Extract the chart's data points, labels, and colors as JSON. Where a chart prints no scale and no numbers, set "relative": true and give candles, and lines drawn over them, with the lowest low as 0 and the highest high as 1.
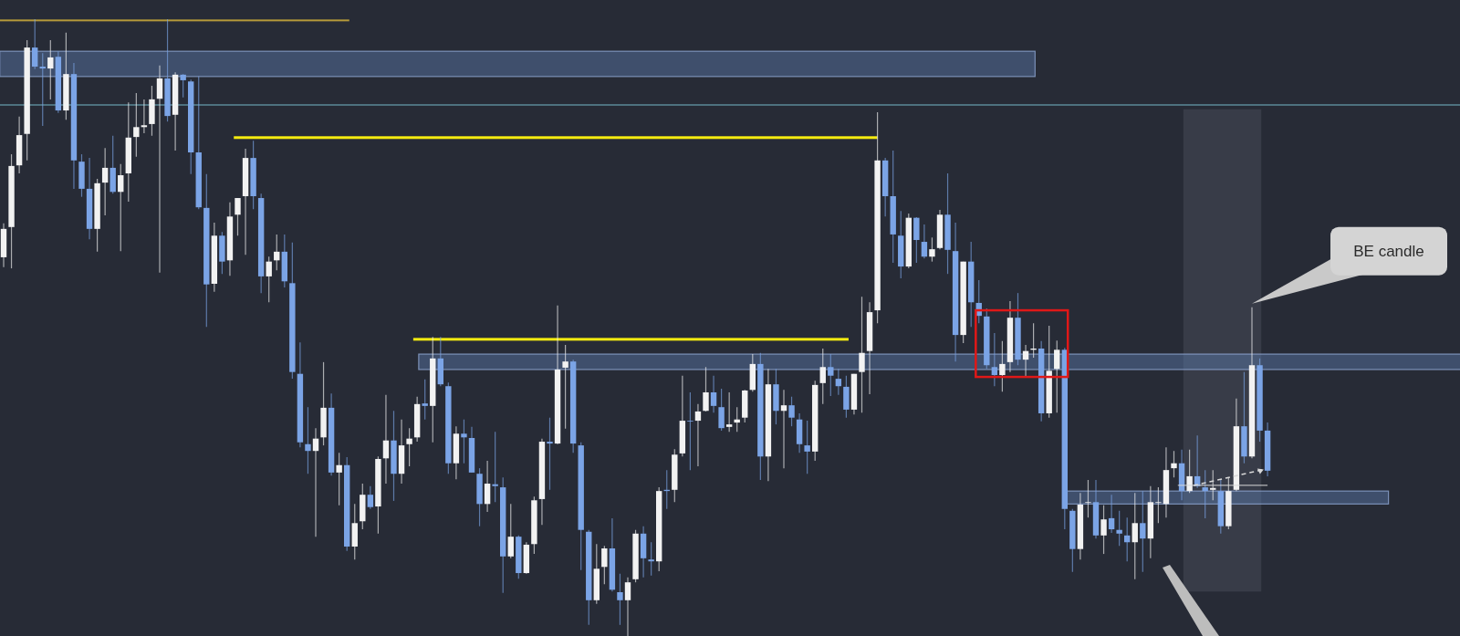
{
  "chart_data": {
    "type": "candlestick",
    "relative": true,
    "categories": [
      null,
      null,
      null,
      null,
      null,
      null,
      null,
      null,
      null,
      null,
      null,
      null,
      null,
      null,
      null,
      null,
      null,
      null,
      null,
      null,
      null,
      null,
      null,
      null,
      null,
      null,
      null,
      null,
      null,
      null,
      null,
      null,
      null,
      null,
      null,
      null,
      null,
      null,
      null,
      null,
      null,
      null,
      null,
      null,
      null,
      null,
      null,
      null,
      null,
      null,
      null,
      null,
      null,
      null,
      null,
      null,
      null,
      null,
      null,
      null,
      null,
      null,
      null,
      null,
      null,
      null,
      null,
      null,
      null,
      null,
      null,
      null,
      null,
      null,
      null,
      null,
      null,
      null,
      null,
      null,
      null,
      null,
      null,
      null,
      null,
      null,
      null,
      null,
      null,
      null,
      null,
      null,
      null,
      null,
      null,
      null,
      null,
      null,
      null,
      null,
      null,
      null,
      null,
      null,
      null,
      null,
      null,
      null,
      null,
      null,
      null,
      null,
      null,
      null,
      null,
      null,
      null,
      null,
      null,
      null,
      null,
      null,
      null,
      null,
      null,
      null,
      null,
      null,
      null,
      null,
      null,
      null,
      null,
      null,
      null,
      null,
      null,
      null,
      null,
      null,
      null,
      null,
      null,
      null,
      null,
      null,
      null,
      null,
      null,
      null,
      null,
      null,
      null,
      null,
      null,
      null,
      null,
      null,
      null,
      null,
      null,
      null,
      null
    ],
    "colors": [
      "#f2f2f2",
      "#f2f2f2",
      "#f2f2f2",
      "#f2f2f2",
      "#7ba4e6",
      "#7ba4e6",
      "#f2f2f2",
      "#7ba4e6",
      "#f2f2f2",
      "#7ba4e6",
      "#7ba4e6",
      "#7ba4e6",
      "#f2f2f2",
      "#f2f2f2",
      "#7ba4e6",
      "#f2f2f2",
      "#f2f2f2",
      "#f2f2f2",
      "#f2f2f2",
      "#f2f2f2",
      "#f2f2f2",
      "#7ba4e6",
      "#f2f2f2",
      "#7ba4e6",
      "#7ba4e6",
      "#7ba4e6",
      "#7ba4e6",
      "#f2f2f2",
      "#7ba4e6",
      "#f2f2f2",
      "#f2f2f2",
      "#f2f2f2",
      "#7ba4e6",
      "#7ba4e6",
      "#f2f2f2",
      "#f2f2f2",
      "#7ba4e6",
      "#7ba4e6",
      "#7ba4e6",
      "#7ba4e6",
      "#f2f2f2",
      "#f2f2f2",
      "#7ba4e6",
      "#f2f2f2",
      "#7ba4e6",
      "#f2f2f2",
      "#f2f2f2",
      "#7ba4e6",
      "#f2f2f2",
      "#f2f2f2",
      "#7ba4e6",
      "#f2f2f2",
      "#f2f2f2",
      "#f2f2f2",
      "#7ba4e6",
      "#f2f2f2",
      "#7ba4e6",
      "#7ba4e6",
      "#f2f2f2",
      "#7ba4e6",
      "#7ba4e6",
      "#7ba4e6",
      "#f2f2f2",
      "#7ba4e6",
      "#7ba4e6",
      "#f2f2f2",
      "#7ba4e6",
      "#f2f2f2",
      "#f2f2f2",
      "#f2f2f2",
      "#7ba4e6",
      "#f2f2f2",
      "#f2f2f2",
      "#7ba4e6",
      "#7ba4e6",
      "#7ba4e6",
      "#f2f2f2",
      "#f2f2f2",
      "#7ba4e6",
      "#7ba4e6",
      "#f2f2f2",
      "#f2f2f2",
      "#7ba4e6",
      "#7ba4e6",
      "#f2f2f2",
      "#7ba4e6",
      "#f2f2f2",
      "#f2f2f2",
      "#7ba4e6",
      "#f2f2f2",
      "#f2f2f2",
      "#7ba4e6",
      "#7ba4e6",
      "#f2f2f2",
      "#f2f2f2",
      "#f2f2f2",
      "#f2f2f2",
      "#7ba4e6",
      "#f2f2f2",
      "#7ba4e6",
      "#f2f2f2",
      "#7ba4e6",
      "#7ba4e6",
      "#7ba4e6",
      "#f2f2f2",
      "#f2f2f2",
      "#7ba4e6",
      "#7ba4e6",
      "#7ba4e6",
      "#f2f2f2",
      "#f2f2f2",
      "#f2f2f2",
      "#f2f2f2",
      "#7ba4e6",
      "#7ba4e6",
      "#7ba4e6",
      "#f2f2f2",
      "#7ba4e6",
      "#7ba4e6",
      "#f2f2f2",
      "#f2f2f2",
      "#7ba4e6",
      "#7ba4e6",
      "#f2f2f2",
      "#7ba4e6",
      "#7ba4e6",
      "#7ba4e6",
      "#7ba4e6",
      "#f2f2f2",
      "#f2f2f2",
      "#7ba4e6",
      "#f2f2f2",
      "#f2f2f2",
      "#7ba4e6",
      "#f2f2f2",
      "#f2f2f2",
      "#7ba4e6",
      "#7ba4e6",
      "#f2f2f2",
      "#f2f2f2",
      "#7ba4e6",
      "#f2f2f2",
      "#7ba4e6",
      "#7ba4e6",
      "#7ba4e6",
      "#f2f2f2",
      "#7ba4e6",
      "#f2f2f2",
      "#f2f2f2",
      "#f2f2f2",
      "#f2f2f2",
      "#7ba4e6",
      "#f2f2f2",
      "#7ba4e6",
      "#7ba4e6",
      "#f2f2f2",
      "#7ba4e6",
      "#f2f2f2",
      "#f2f2f2",
      "#7ba4e6",
      "#f2f2f2",
      "#7ba4e6",
      "#7ba4e6"
    ],
    "ohlc": [
      [
        0.614,
        0.669,
        0.598,
        0.66
      ],
      [
        0.663,
        0.781,
        0.596,
        0.762
      ],
      [
        0.763,
        0.842,
        0.75,
        0.812
      ],
      [
        0.814,
        0.966,
        0.771,
        0.954
      ],
      [
        0.954,
        1,
        0.919,
        0.923
      ],
      [
        0.923,
        0.945,
        0.827,
        0.92
      ],
      [
        0.92,
        0.966,
        0.87,
        0.938
      ],
      [
        0.939,
        0.948,
        0.848,
        0.852
      ],
      [
        0.852,
        0.978,
        0.837,
        0.911
      ],
      [
        0.911,
        0.929,
        0.725,
        0.771
      ],
      [
        0.769,
        0.781,
        0.712,
        0.725
      ],
      [
        0.725,
        0.775,
        0.643,
        0.66
      ],
      [
        0.66,
        0.741,
        0.623,
        0.734
      ],
      [
        0.735,
        0.791,
        0.682,
        0.759
      ],
      [
        0.759,
        0.811,
        0.717,
        0.72
      ],
      [
        0.72,
        0.765,
        0.624,
        0.747
      ],
      [
        0.75,
        0.865,
        0.704,
        0.808
      ],
      [
        0.809,
        0.88,
        0.777,
        0.825
      ],
      [
        0.825,
        0.87,
        0.815,
        0.828
      ],
      [
        0.83,
        0.892,
        0.811,
        0.87
      ],
      [
        0.871,
        0.925,
        0.589,
        0.904
      ],
      [
        0.904,
        1,
        0.834,
        0.843
      ],
      [
        0.845,
        0.914,
        0.787,
        0.91
      ],
      [
        0.91,
        0.911,
        0.873,
        0.901
      ],
      [
        0.899,
        0.902,
        0.749,
        0.784
      ],
      [
        0.784,
        0.907,
        0.692,
        0.695
      ],
      [
        0.694,
        0.749,
        0.501,
        0.57
      ],
      [
        0.571,
        0.67,
        0.558,
        0.649
      ],
      [
        0.649,
        0.655,
        0.587,
        0.607
      ],
      [
        0.609,
        0.703,
        0.584,
        0.68
      ],
      [
        0.683,
        0.71,
        0.649,
        0.71
      ],
      [
        0.713,
        0.79,
        0.618,
        0.775
      ],
      [
        0.775,
        0.803,
        0.692,
        0.713
      ],
      [
        0.71,
        0.717,
        0.556,
        0.583
      ],
      [
        0.583,
        0.615,
        0.541,
        0.607
      ],
      [
        0.609,
        0.651,
        0.593,
        0.623
      ],
      [
        0.623,
        0.651,
        0.565,
        0.575
      ],
      [
        0.572,
        0.638,
        0.417,
        0.428
      ],
      [
        0.425,
        0.476,
        0.306,
        0.314
      ],
      [
        0.311,
        0.371,
        0.263,
        0.3
      ],
      [
        0.3,
        0.337,
        0.161,
        0.32
      ],
      [
        0.322,
        0.444,
        0.309,
        0.37
      ],
      [
        0.37,
        0.393,
        0.26,
        0.265
      ],
      [
        0.265,
        0.297,
        0.212,
        0.277
      ],
      [
        0.277,
        0.29,
        0.138,
        0.145
      ],
      [
        0.145,
        0.214,
        0.124,
        0.183
      ],
      [
        0.186,
        0.247,
        0.173,
        0.229
      ],
      [
        0.229,
        0.243,
        0.206,
        0.209
      ],
      [
        0.21,
        0.291,
        0.166,
        0.287
      ],
      [
        0.288,
        0.391,
        0.247,
        0.317
      ],
      [
        0.317,
        0.365,
        0.219,
        0.263
      ],
      [
        0.263,
        0.351,
        0.247,
        0.309
      ],
      [
        0.311,
        0.337,
        0.275,
        0.32
      ],
      [
        0.322,
        0.388,
        0.315,
        0.376
      ],
      [
        0.377,
        0.416,
        0.351,
        0.373
      ],
      [
        0.373,
        0.485,
        0.314,
        0.45
      ],
      [
        0.45,
        0.485,
        0.405,
        0.408
      ],
      [
        0.405,
        0.411,
        0.263,
        0.28
      ],
      [
        0.28,
        0.34,
        0.254,
        0.328
      ],
      [
        0.328,
        0.351,
        0.28,
        0.322
      ],
      [
        0.321,
        0.339,
        0.265,
        0.265
      ],
      [
        0.263,
        0.272,
        0.178,
        0.214
      ],
      [
        0.214,
        0.284,
        0.201,
        0.247
      ],
      [
        0.246,
        0.331,
        0.217,
        0.243
      ],
      [
        0.241,
        0.257,
        0.07,
        0.129
      ],
      [
        0.129,
        0.214,
        0.126,
        0.161
      ],
      [
        0.161,
        0.163,
        0.093,
        0.102
      ],
      [
        0.102,
        0.152,
        0.101,
        0.148
      ],
      [
        0.149,
        0.226,
        0.133,
        0.22
      ],
      [
        0.222,
        0.32,
        0.18,
        0.315
      ],
      [
        0.315,
        0.354,
        0.237,
        0.312
      ],
      [
        0.312,
        0.536,
        0.311,
        0.432
      ],
      [
        0.435,
        0.472,
        0.336,
        0.445
      ],
      [
        0.445,
        0.448,
        0.297,
        0.312
      ],
      [
        0.309,
        0.314,
        0.107,
        0.172
      ],
      [
        0.169,
        0.172,
        0.018,
        0.058
      ],
      [
        0.058,
        0.149,
        0.052,
        0.109
      ],
      [
        0.112,
        0.146,
        0.084,
        0.142
      ],
      [
        0.142,
        0.191,
        0.072,
        0.075
      ],
      [
        0.071,
        0.101,
        0.018,
        0.058
      ],
      [
        0.058,
        0.095,
        0,
        0.087
      ],
      [
        0.092,
        0.172,
        0.087,
        0.166
      ],
      [
        0.166,
        0.178,
        0.095,
        0.126
      ],
      [
        0.124,
        0.152,
        0.098,
        0.121
      ],
      [
        0.121,
        0.241,
        0.105,
        0.235
      ],
      [
        0.237,
        0.269,
        0.206,
        0.235
      ],
      [
        0.237,
        0.303,
        0.217,
        0.294
      ],
      [
        0.296,
        0.422,
        0.291,
        0.349
      ],
      [
        0.349,
        0.395,
        0.269,
        0.348
      ],
      [
        0.349,
        0.376,
        0.275,
        0.364
      ],
      [
        0.365,
        0.436,
        0.364,
        0.395
      ],
      [
        0.395,
        0.422,
        0.362,
        0.373
      ],
      [
        0.371,
        0.401,
        0.333,
        0.337
      ],
      [
        0.339,
        0.395,
        0.331,
        0.343
      ],
      [
        0.346,
        0.371,
        0.331,
        0.351
      ],
      [
        0.354,
        0.399,
        0.346,
        0.398
      ],
      [
        0.399,
        0.457,
        0.396,
        0.441
      ],
      [
        0.441,
        0.459,
        0.253,
        0.291
      ],
      [
        0.291,
        0.433,
        0.251,
        0.408
      ],
      [
        0.408,
        0.433,
        0.343,
        0.365
      ],
      [
        0.365,
        0.399,
        0.272,
        0.374
      ],
      [
        0.374,
        0.388,
        0.34,
        0.354
      ],
      [
        0.351,
        0.361,
        0.297,
        0.311
      ],
      [
        0.309,
        0.349,
        0.263,
        0.299
      ],
      [
        0.299,
        0.414,
        0.284,
        0.407
      ],
      [
        0.41,
        0.466,
        0.376,
        0.436
      ],
      [
        0.436,
        0.457,
        0.389,
        0.422
      ],
      [
        0.417,
        0.433,
        0.391,
        0.405
      ],
      [
        0.404,
        0.422,
        0.354,
        0.367
      ],
      [
        0.367,
        0.425,
        0.359,
        0.425
      ],
      [
        0.428,
        0.55,
        0.362,
        0.459
      ],
      [
        0.462,
        0.541,
        0.392,
        0.525
      ],
      [
        0.528,
        0.849,
        0.507,
        0.771
      ],
      [
        0.771,
        0.775,
        0.68,
        0.713
      ],
      [
        0.713,
        0.787,
        0.605,
        0.651
      ],
      [
        0.649,
        0.689,
        0.58,
        0.599
      ],
      [
        0.599,
        0.685,
        0.596,
        0.678
      ],
      [
        0.678,
        0.679,
        0.605,
        0.642
      ],
      [
        0.639,
        0.667,
        0.612,
        0.615
      ],
      [
        0.615,
        0.646,
        0.607,
        0.627
      ],
      [
        0.629,
        0.691,
        0.627,
        0.683
      ],
      [
        0.683,
        0.75,
        0.587,
        0.626
      ],
      [
        0.624,
        0.67,
        0.445,
        0.488
      ],
      [
        0.488,
        0.607,
        0.475,
        0.607
      ],
      [
        0.607,
        0.639,
        0.501,
        0.541
      ],
      [
        0.54,
        0.577,
        0.507,
        0.519
      ],
      [
        0.518,
        0.531,
        0.433,
        0.439
      ],
      [
        0.436,
        0.491,
        0.405,
        0.423
      ],
      [
        0.423,
        0.478,
        0.396,
        0.441
      ],
      [
        0.444,
        0.543,
        0.428,
        0.516
      ],
      [
        0.516,
        0.556,
        0.439,
        0.448
      ],
      [
        0.448,
        0.472,
        0.42,
        0.462
      ],
      [
        0.464,
        0.507,
        0.451,
        0.466
      ],
      [
        0.466,
        0.478,
        0.348,
        0.361
      ],
      [
        0.361,
        0.503,
        0.354,
        0.43
      ],
      [
        0.433,
        0.479,
        0.362,
        0.464
      ],
      [
        0.464,
        0.467,
        0.173,
        0.206
      ],
      [
        0.203,
        0.206,
        0.104,
        0.141
      ],
      [
        0.141,
        0.232,
        0.124,
        0.213
      ],
      [
        0.216,
        0.253,
        0.192,
        0.217
      ],
      [
        0.217,
        0.253,
        0.158,
        0.163
      ],
      [
        0.163,
        0.212,
        0.133,
        0.189
      ],
      [
        0.191,
        0.229,
        0.167,
        0.173
      ],
      [
        0.172,
        0.203,
        0.146,
        0.166
      ],
      [
        0.163,
        0.192,
        0.121,
        0.152
      ],
      [
        0.152,
        0.232,
        0.092,
        0.183
      ],
      [
        0.183,
        0.235,
        0.104,
        0.158
      ],
      [
        0.158,
        0.243,
        0.126,
        0.217
      ],
      [
        0.216,
        0.241,
        0.183,
        0.217
      ],
      [
        0.214,
        0.306,
        0.192,
        0.269
      ],
      [
        0.272,
        0.3,
        0.257,
        0.28
      ],
      [
        0.28,
        0.302,
        0.22,
        0.235
      ],
      [
        0.235,
        0.302,
        0.232,
        0.259
      ],
      [
        0.259,
        0.325,
        0.24,
        0.243
      ],
      [
        0.241,
        0.269,
        0.191,
        0.235
      ],
      [
        0.237,
        0.269,
        0.22,
        0.24
      ],
      [
        0.235,
        0.254,
        0.166,
        0.178
      ],
      [
        0.178,
        0.257,
        0.173,
        0.235
      ],
      [
        0.237,
        0.385,
        0.235,
        0.34
      ],
      [
        0.34,
        0.428,
        0.28,
        0.291
      ],
      [
        0.291,
        0.533,
        0.288,
        0.439
      ],
      [
        0.439,
        0.45,
        0.315,
        0.333
      ],
      [
        0.333,
        0.346,
        0.259,
        0.268
      ]
    ],
    "ref_lines": [
      {
        "axis": "y",
        "value": 0.861,
        "color": "#5d8a99"
      }
    ],
    "annotations": [
      "BE candle"
    ]
  }
}
